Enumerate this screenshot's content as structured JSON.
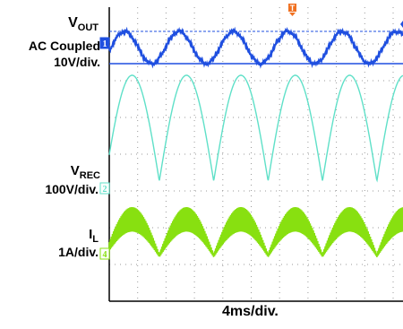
{
  "chart_data": {
    "type": "line",
    "traces": [
      {
        "name": "V_OUT",
        "label_main": "V",
        "label_sub": "OUT",
        "coupling": "AC Coupled",
        "scale": "10V/div.",
        "channel_marker": "1",
        "color": "#1f4fe0",
        "waveform": "sine",
        "cycles_visible": 5.4,
        "ripple_divisions_pp": 1.0
      },
      {
        "name": "V_REC",
        "label_main": "V",
        "label_sub": "REC",
        "scale": "100V/div.",
        "channel_marker": "2",
        "color": "#5fe0c8",
        "waveform": "rectified-sine",
        "humps_visible": 5.4
      },
      {
        "name": "I_L",
        "label_main": "I",
        "label_sub": "L",
        "scale": "1A/div.",
        "channel_marker": "4",
        "color": "#88e010",
        "waveform": "hf-switching-rectified-envelope",
        "humps_visible": 5.4
      }
    ],
    "time_scale": "4ms/div.",
    "divisions": {
      "x": 10,
      "y": 8
    },
    "trigger_marker": "T",
    "grid": true
  }
}
